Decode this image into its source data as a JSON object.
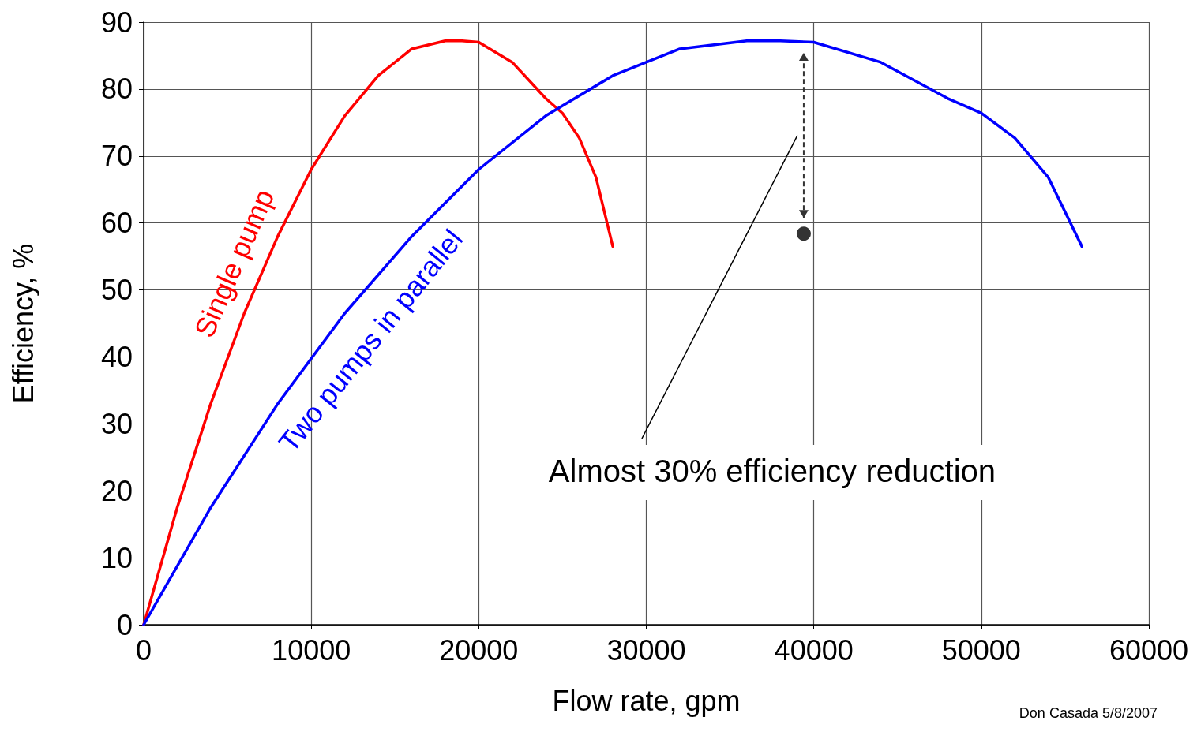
{
  "chart_data": {
    "type": "line",
    "xlabel": "Flow rate, gpm",
    "ylabel": "Efficiency, %",
    "xlim": [
      0,
      60000
    ],
    "xticks": [
      0,
      10000,
      20000,
      30000,
      40000,
      50000,
      60000
    ],
    "ylim": [
      0,
      90
    ],
    "yticks": [
      0,
      10,
      20,
      30,
      40,
      50,
      60,
      70,
      80,
      90
    ],
    "grid": true,
    "marker": "none",
    "line_style": "solid",
    "series": [
      {
        "name": "Single pump",
        "color": "#ff0000",
        "x": [
          0,
          2000,
          4000,
          6000,
          8000,
          10000,
          12000,
          14000,
          16000,
          18000,
          19000,
          20000,
          22000,
          24000,
          25000,
          26000,
          27000,
          28000
        ],
        "values": [
          0,
          17.5,
          33,
          46.5,
          58,
          68,
          76,
          82,
          86,
          87.2,
          87.2,
          87,
          84,
          78.6,
          76.4,
          72.7,
          66.8,
          56.5
        ]
      },
      {
        "name": "Two pumps in parallel",
        "color": "#0000ff",
        "x": [
          0,
          4000,
          8000,
          12000,
          16000,
          20000,
          24000,
          28000,
          32000,
          36000,
          38000,
          40000,
          44000,
          48000,
          50000,
          52000,
          54000,
          56000
        ],
        "values": [
          0,
          17.5,
          33,
          46.5,
          58,
          68,
          76,
          82,
          86,
          87.2,
          87.2,
          87,
          84,
          78.6,
          76.4,
          72.7,
          66.8,
          56.5
        ]
      },
      {
        "type": "scatter",
        "marker": "circle",
        "color": "#000000",
        "x": [
          39400
        ],
        "values": [
          58.4
        ]
      }
    ],
    "annotations": [
      "Almost 30% efficiency reduction",
      "Don Casada 5/8/2007"
    ]
  }
}
